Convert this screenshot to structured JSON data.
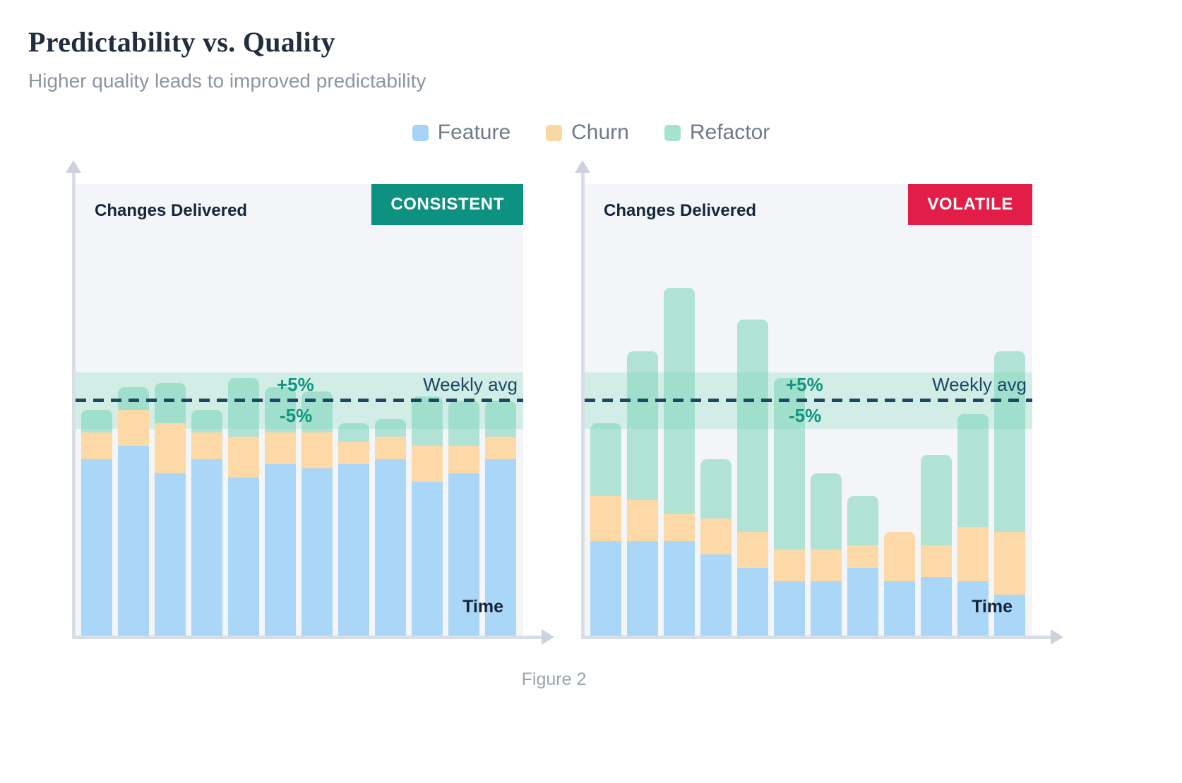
{
  "header": {
    "title": "Predictability vs. Quality",
    "subtitle": "Higher quality leads to improved predictability"
  },
  "legend": [
    {
      "label": "Feature",
      "color": "#a5d3f6"
    },
    {
      "label": "Churn",
      "color": "#fbd7a1"
    },
    {
      "label": "Refactor",
      "color": "#a5e3cf"
    }
  ],
  "caption": "Figure 2",
  "colors": {
    "feature": "#aad6f7",
    "churn": "#fcd9a6",
    "refactor": "rgba(121, 212, 184, 0.55)",
    "band": "rgba(160, 226, 202, 0.4)",
    "avg_line": "#1c4863"
  },
  "chart_data": [
    {
      "type": "bar",
      "stacked": true,
      "variant": "consistent",
      "badge": "CONSISTENT",
      "badge_color": "#0d9180",
      "ylabel": "Changes Delivered",
      "xlabel": "Time",
      "labels": {
        "plus_pct": "+5%",
        "minus_pct": "-5%",
        "avg": "Weekly avg"
      },
      "ylim": [
        0,
        100
      ],
      "weekly_avg": 52,
      "band": {
        "low": 45.8,
        "high": 58.3
      },
      "series_names": [
        "Feature",
        "Churn",
        "Refactor"
      ],
      "bars": [
        {
          "feature": 39,
          "churn": 6,
          "refactor": 5
        },
        {
          "feature": 42,
          "churn": 8,
          "refactor": 5
        },
        {
          "feature": 36,
          "churn": 11,
          "refactor": 9
        },
        {
          "feature": 39,
          "churn": 6,
          "refactor": 5
        },
        {
          "feature": 35,
          "churn": 9,
          "refactor": 13
        },
        {
          "feature": 38,
          "churn": 7,
          "refactor": 10
        },
        {
          "feature": 37,
          "churn": 8,
          "refactor": 9
        },
        {
          "feature": 38,
          "churn": 5,
          "refactor": 4
        },
        {
          "feature": 39,
          "churn": 5,
          "refactor": 4
        },
        {
          "feature": 34,
          "churn": 8,
          "refactor": 11
        },
        {
          "feature": 36,
          "churn": 6,
          "refactor": 10
        },
        {
          "feature": 39,
          "churn": 5,
          "refactor": 8
        }
      ]
    },
    {
      "type": "bar",
      "stacked": true,
      "variant": "volatile",
      "badge": "VOLATILE",
      "badge_color": "#e11d48",
      "ylabel": "Changes Delivered",
      "xlabel": "Time",
      "labels": {
        "plus_pct": "+5%",
        "minus_pct": "-5%",
        "avg": "Weekly avg"
      },
      "ylim": [
        0,
        100
      ],
      "weekly_avg": 52,
      "band": {
        "low": 45.8,
        "high": 58.3
      },
      "series_names": [
        "Feature",
        "Churn",
        "Refactor"
      ],
      "bars": [
        {
          "feature": 21,
          "churn": 10,
          "refactor": 16
        },
        {
          "feature": 21,
          "churn": 9,
          "refactor": 33
        },
        {
          "feature": 21,
          "churn": 6,
          "refactor": 50
        },
        {
          "feature": 18,
          "churn": 8,
          "refactor": 13
        },
        {
          "feature": 15,
          "churn": 8,
          "refactor": 47
        },
        {
          "feature": 12,
          "churn": 7,
          "refactor": 38
        },
        {
          "feature": 12,
          "churn": 7,
          "refactor": 17
        },
        {
          "feature": 15,
          "churn": 5,
          "refactor": 11
        },
        {
          "feature": 12,
          "churn": 11,
          "refactor": 0
        },
        {
          "feature": 13,
          "churn": 7,
          "refactor": 20
        },
        {
          "feature": 12,
          "churn": 12,
          "refactor": 25
        },
        {
          "feature": 9,
          "churn": 14,
          "refactor": 40
        }
      ]
    }
  ]
}
